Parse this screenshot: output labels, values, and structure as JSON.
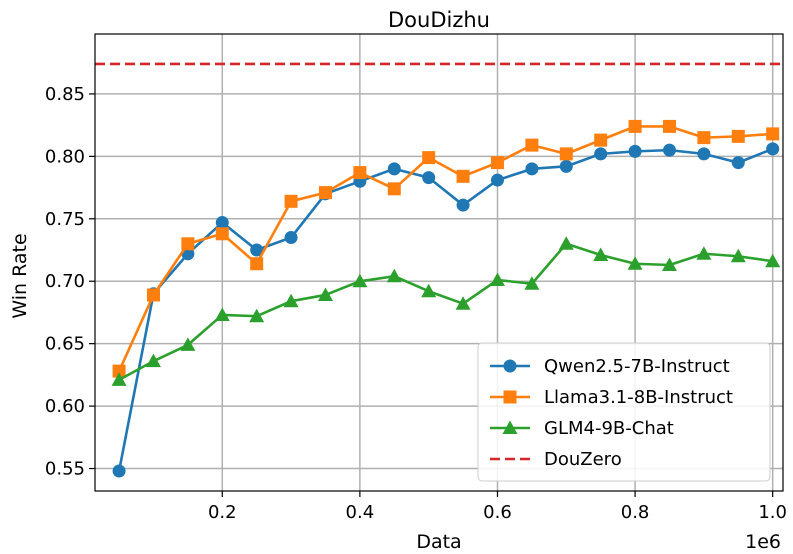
{
  "chart_data": {
    "type": "line",
    "title": "DouDizhu",
    "xlabel": "Data",
    "ylabel": "Win Rate",
    "x_offset_label": "1e6",
    "xlim": [
      0.015,
      1.015
    ],
    "ylim": [
      0.532,
      0.898
    ],
    "xticks": [
      0.2,
      0.4,
      0.6,
      0.8,
      1.0
    ],
    "xtick_labels": [
      "0.2",
      "0.4",
      "0.6",
      "0.8",
      "1.0"
    ],
    "yticks": [
      0.55,
      0.6,
      0.65,
      0.7,
      0.75,
      0.8,
      0.85
    ],
    "ytick_labels": [
      "0.55",
      "0.60",
      "0.65",
      "0.70",
      "0.75",
      "0.80",
      "0.85"
    ],
    "grid": true,
    "legend_position": "lower-right",
    "x": [
      0.05,
      0.1,
      0.15,
      0.2,
      0.25,
      0.3,
      0.35,
      0.4,
      0.45,
      0.5,
      0.55,
      0.6,
      0.65,
      0.7,
      0.75,
      0.8,
      0.85,
      0.9,
      0.95,
      1.0
    ],
    "series": [
      {
        "name": "Qwen2.5-7B-Instruct",
        "color": "#1f77b4",
        "marker": "circle",
        "values": [
          0.548,
          0.69,
          0.722,
          0.747,
          0.725,
          0.735,
          0.77,
          0.78,
          0.79,
          0.783,
          0.761,
          0.781,
          0.79,
          0.792,
          0.802,
          0.804,
          0.805,
          0.802,
          0.795,
          0.806
        ]
      },
      {
        "name": "Llama3.1-8B-Instruct",
        "color": "#ff7f0e",
        "marker": "square",
        "values": [
          0.628,
          0.689,
          0.73,
          0.738,
          0.714,
          0.764,
          0.771,
          0.787,
          0.774,
          0.799,
          0.784,
          0.795,
          0.809,
          0.802,
          0.813,
          0.824,
          0.824,
          0.815,
          0.816,
          0.818
        ]
      },
      {
        "name": "GLM4-9B-Chat",
        "color": "#2ca02c",
        "marker": "triangle",
        "values": [
          0.621,
          0.636,
          0.649,
          0.673,
          0.672,
          0.684,
          0.689,
          0.7,
          0.704,
          0.692,
          0.682,
          0.701,
          0.698,
          0.73,
          0.721,
          0.714,
          0.713,
          0.722,
          0.72,
          0.716
        ]
      }
    ],
    "reference_lines": [
      {
        "name": "DouZero",
        "y": 0.874,
        "color": "#d62728",
        "style": "dashed"
      }
    ]
  }
}
